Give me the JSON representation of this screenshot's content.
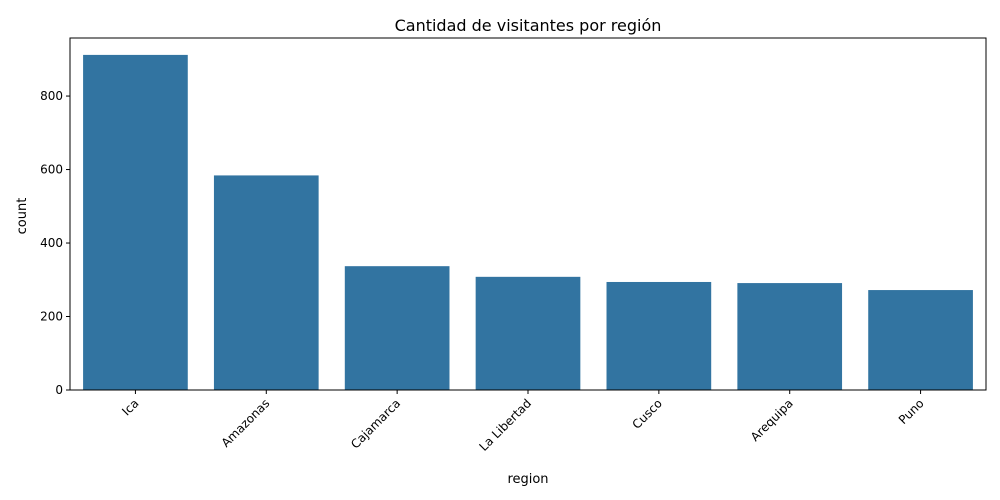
{
  "chart_data": {
    "type": "bar",
    "title": "Cantidad de visitantes por región",
    "xlabel": "region",
    "ylabel": "count",
    "categories": [
      "Ica",
      "Amazonas",
      "Cajamarca",
      "La Libertad",
      "Cusco",
      "Arequipa",
      "Puno"
    ],
    "values": [
      912,
      584,
      337,
      308,
      294,
      291,
      272
    ],
    "ylim": [
      0,
      958
    ],
    "yticks": [
      0,
      200,
      400,
      600,
      800
    ],
    "xtick_rotation": 45,
    "grid": false,
    "bar_color": "#3274a1"
  }
}
